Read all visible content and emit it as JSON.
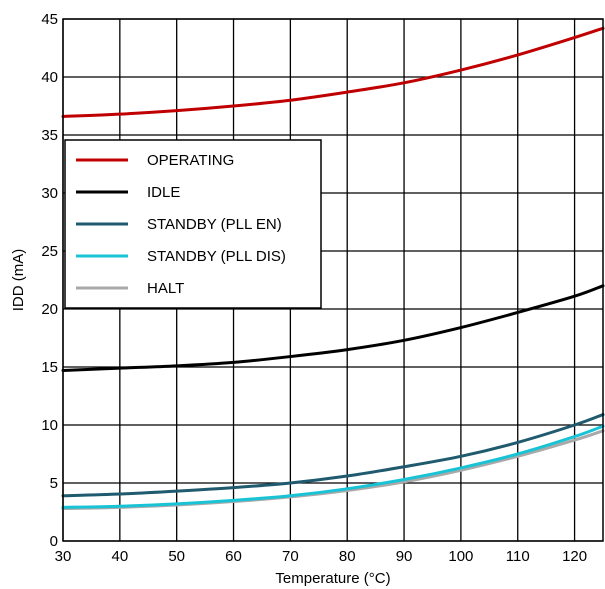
{
  "chart_data": {
    "type": "line",
    "title": "",
    "xlabel": "Temperature (°C)",
    "ylabel": "IDD (mA)",
    "xlim": [
      30,
      125
    ],
    "ylim": [
      0,
      45
    ],
    "xticks": [
      30,
      40,
      50,
      60,
      70,
      80,
      90,
      100,
      110,
      120
    ],
    "yticks": [
      0,
      5,
      10,
      15,
      20,
      25,
      30,
      35,
      40,
      45
    ],
    "grid": true,
    "legend_position": "upper-left",
    "x": [
      30,
      40,
      50,
      60,
      70,
      80,
      90,
      100,
      110,
      120,
      125
    ],
    "series": [
      {
        "name": "OPERATING",
        "color": "#c00000",
        "values": [
          36.6,
          36.8,
          37.1,
          37.5,
          38.0,
          38.7,
          39.5,
          40.6,
          41.9,
          43.4,
          44.2
        ]
      },
      {
        "name": "IDLE",
        "color": "#000000",
        "values": [
          14.7,
          14.9,
          15.1,
          15.4,
          15.9,
          16.5,
          17.3,
          18.4,
          19.7,
          21.1,
          22.0
        ]
      },
      {
        "name": "STANDBY (PLL EN)",
        "color": "#1f5a6e",
        "values": [
          3.9,
          4.05,
          4.3,
          4.6,
          5.0,
          5.6,
          6.4,
          7.3,
          8.5,
          10.0,
          10.9
        ]
      },
      {
        "name": "STANDBY (PLL DIS)",
        "color": "#19c3d6",
        "values": [
          2.9,
          3.0,
          3.2,
          3.5,
          3.9,
          4.5,
          5.3,
          6.3,
          7.5,
          9.0,
          9.9
        ]
      },
      {
        "name": "HALT",
        "color": "#a9a9a9",
        "values": [
          2.8,
          2.9,
          3.1,
          3.4,
          3.8,
          4.35,
          5.1,
          6.1,
          7.3,
          8.7,
          9.5
        ]
      }
    ]
  }
}
